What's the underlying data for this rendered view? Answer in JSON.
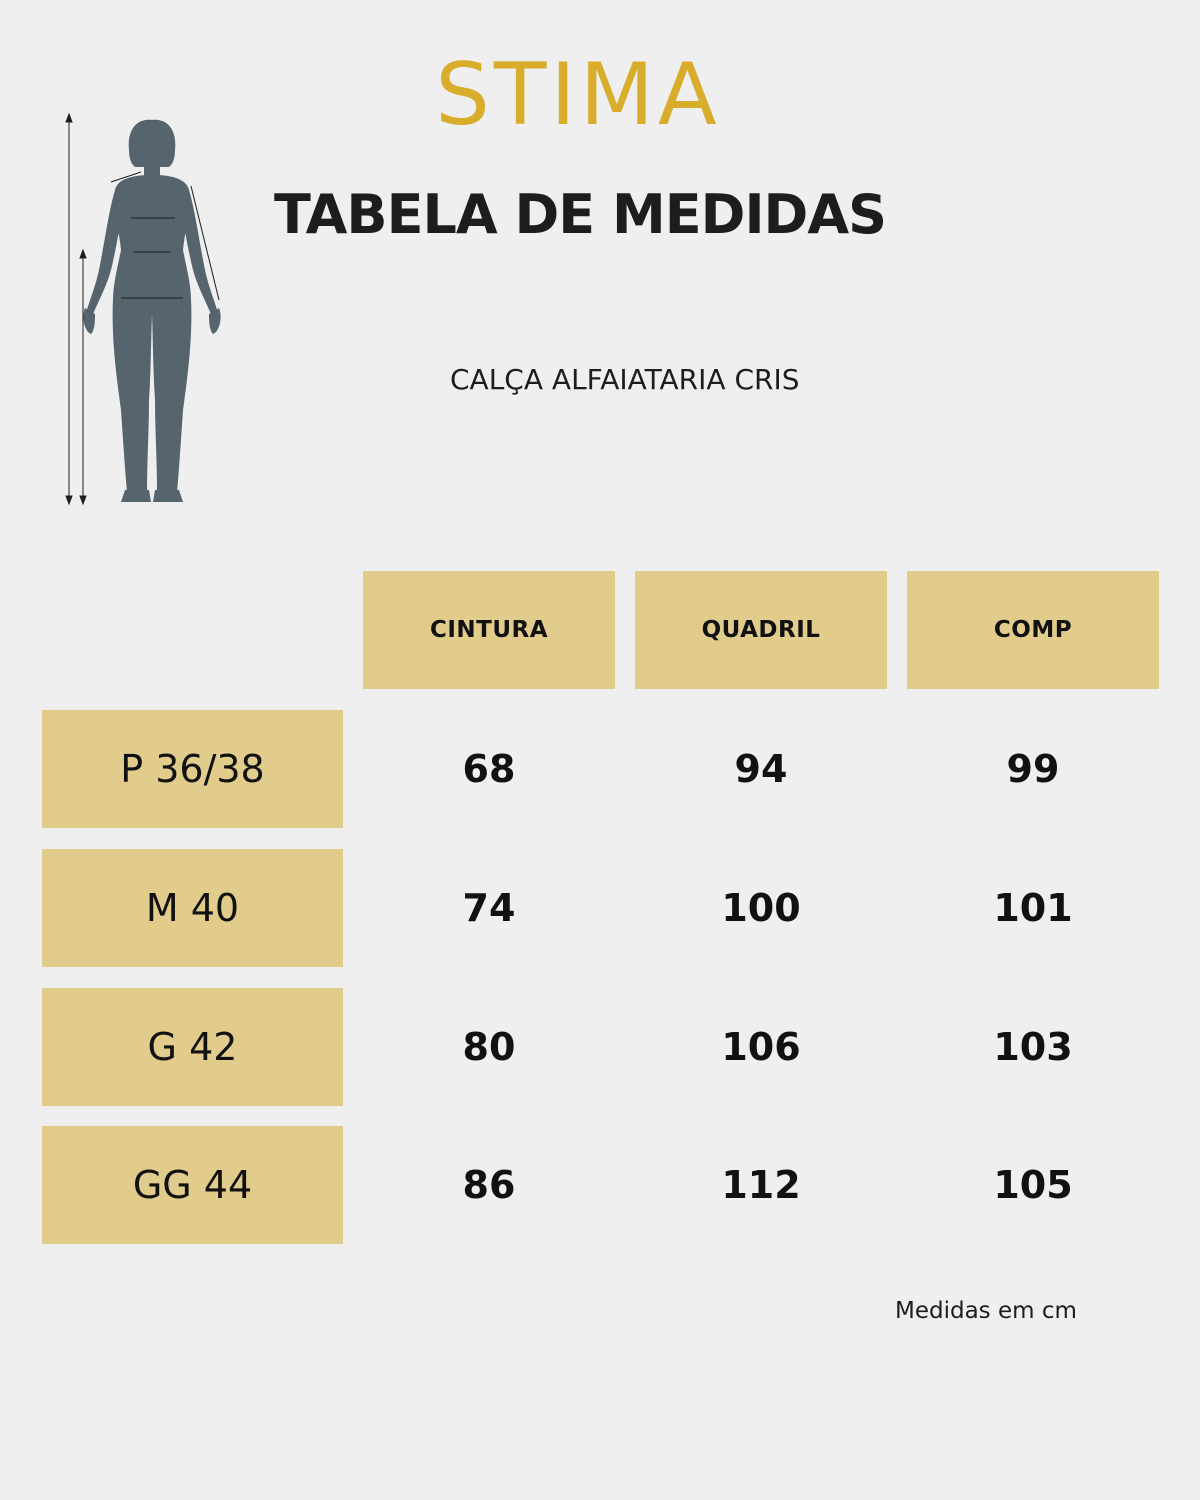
{
  "brand": {
    "logo_text": "STIMA",
    "logo_color": "#d9ad2c"
  },
  "header": {
    "title": "TABELA DE MEDIDAS",
    "subtitle": "CALÇA ALFAIATARIA CRIS"
  },
  "figure": {
    "icon": "body-measurement-silhouette-icon",
    "color": "#56656d"
  },
  "table": {
    "cell_color": "#e2cc8c",
    "columns": [
      "CINTURA",
      "QUADRIL",
      "COMP"
    ],
    "rows": [
      {
        "size": "P 36/38",
        "values": [
          "68",
          "94",
          "99"
        ]
      },
      {
        "size": "M 40",
        "values": [
          "74",
          "100",
          "101"
        ]
      },
      {
        "size": "G 42",
        "values": [
          "80",
          "106",
          "103"
        ]
      },
      {
        "size": "GG 44",
        "values": [
          "86",
          "112",
          "105"
        ]
      }
    ]
  },
  "footer": {
    "note": "Medidas em cm"
  }
}
